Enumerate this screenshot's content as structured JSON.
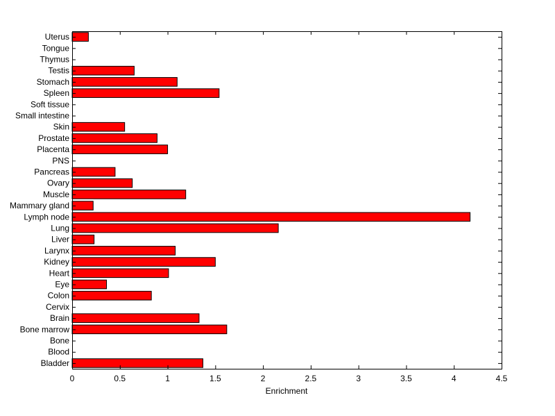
{
  "chart_data": {
    "type": "bar",
    "orientation": "horizontal",
    "xlabel": "Enrichment",
    "ylabel": "",
    "title": "",
    "xlim": [
      0,
      4.5
    ],
    "x_ticks": [
      "0",
      "0.5",
      "1",
      "1.5",
      "2",
      "2.5",
      "3",
      "3.5",
      "4",
      "4.5"
    ],
    "bar_color": "#ff0000",
    "grid": false,
    "categories": [
      "Bladder",
      "Blood",
      "Bone",
      "Bone marrow",
      "Brain",
      "Cervix",
      "Colon",
      "Eye",
      "Heart",
      "Kidney",
      "Larynx",
      "Liver",
      "Lung",
      "Lymph node",
      "Mammary gland",
      "Muscle",
      "Ovary",
      "Pancreas",
      "PNS",
      "Placenta",
      "Prostate",
      "Skin",
      "Small intestine",
      "Soft tissue",
      "Spleen",
      "Stomach",
      "Testis",
      "Thymus",
      "Tongue",
      "Uterus"
    ],
    "values": [
      1.37,
      0,
      0,
      1.62,
      1.33,
      0,
      0.83,
      0.36,
      1.01,
      1.5,
      1.08,
      0.23,
      2.16,
      4.17,
      0.22,
      1.19,
      0.63,
      0.45,
      0,
      1.0,
      0.89,
      0.55,
      0,
      0,
      1.54,
      1.1,
      0.65,
      0,
      0,
      0.17
    ]
  }
}
